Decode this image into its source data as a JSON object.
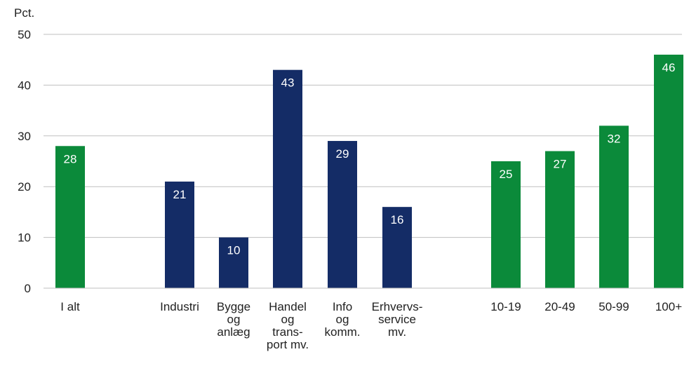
{
  "chart_data": {
    "type": "bar",
    "ylabel": "Pct.",
    "ylim": [
      0,
      50
    ],
    "yticks": [
      0,
      10,
      20,
      30,
      40,
      50
    ],
    "grid": true,
    "colors": {
      "total": "#0b8a3a",
      "sector": "#142c66",
      "size": "#0b8a3a",
      "value_label": "#ffffff"
    },
    "categories": [
      {
        "label_lines": [
          "I alt"
        ],
        "value": 28,
        "group": "total"
      },
      {
        "label_lines": [
          "Industri"
        ],
        "value": 21,
        "group": "sector"
      },
      {
        "label_lines": [
          "Bygge",
          "og",
          "anlæg"
        ],
        "value": 10,
        "group": "sector"
      },
      {
        "label_lines": [
          "Handel",
          "og",
          "trans-",
          "port mv."
        ],
        "value": 43,
        "group": "sector"
      },
      {
        "label_lines": [
          "Info",
          "og",
          "komm."
        ],
        "value": 29,
        "group": "sector"
      },
      {
        "label_lines": [
          "Erhvervs-",
          "service",
          "mv."
        ],
        "value": 16,
        "group": "sector"
      },
      {
        "label_lines": [
          "10-19"
        ],
        "value": 25,
        "group": "size"
      },
      {
        "label_lines": [
          "20-49"
        ],
        "value": 27,
        "group": "size"
      },
      {
        "label_lines": [
          "50-99"
        ],
        "value": 32,
        "group": "size"
      },
      {
        "label_lines": [
          "100+"
        ],
        "value": 46,
        "group": "size"
      }
    ]
  }
}
